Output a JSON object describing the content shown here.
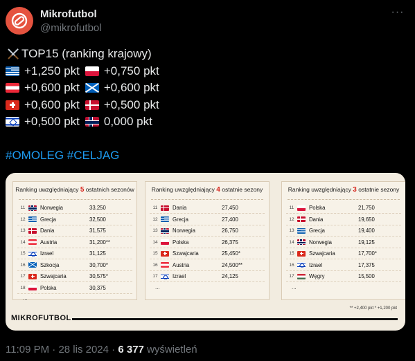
{
  "author": {
    "name": "Mikrofutbol",
    "handle": "@mikrofutbol",
    "more_icon": "ellipsis-icon",
    "more_label": "···"
  },
  "tweet": {
    "headline": "TOP15 (ranking krajowy)",
    "lines": [
      [
        {
          "flag": "greece",
          "value": "+1,250 pkt"
        },
        {
          "flag": "poland",
          "value": "+0,750 pkt"
        }
      ],
      [
        {
          "flag": "austria",
          "value": "+0,600 pkt"
        },
        {
          "flag": "scotland",
          "value": "+0,600 pkt"
        }
      ],
      [
        {
          "flag": "switzerland",
          "value": "+0,600 pkt"
        },
        {
          "flag": "denmark",
          "value": "+0,500 pkt"
        }
      ],
      [
        {
          "flag": "israel",
          "value": "+0,500 pkt"
        },
        {
          "flag": "norway",
          "value": "0,000 pkt"
        }
      ]
    ],
    "hashtags": "#OMOLEG #CELJAG"
  },
  "infographic": {
    "panels": [
      {
        "title_pre": "Ranking uwzględniający",
        "title_num": "5",
        "title_post": "ostatnich sezonów",
        "rows": [
          {
            "pos": "11",
            "flag": "norway",
            "country": "Norwegia",
            "points": "33,250"
          },
          {
            "pos": "12",
            "flag": "greece",
            "country": "Grecja",
            "points": "32,500"
          },
          {
            "pos": "13",
            "flag": "denmark",
            "country": "Dania",
            "points": "31,575"
          },
          {
            "pos": "14",
            "flag": "austria",
            "country": "Austria",
            "points": "31,200**"
          },
          {
            "pos": "15",
            "flag": "israel",
            "country": "Izrael",
            "points": "31,125"
          },
          {
            "pos": "16",
            "flag": "scotland",
            "country": "Szkocja",
            "points": "30,700*"
          },
          {
            "pos": "17",
            "flag": "switzerland",
            "country": "Szwajcaria",
            "points": "30,575*"
          },
          {
            "pos": "18",
            "flag": "poland",
            "country": "Polska",
            "points": "30,375"
          }
        ],
        "ellipsis": "..."
      },
      {
        "title_pre": "Ranking uwzględniający",
        "title_num": "4",
        "title_post": "ostatnie sezony",
        "rows": [
          {
            "pos": "11",
            "flag": "denmark",
            "country": "Dania",
            "points": "27,450"
          },
          {
            "pos": "12",
            "flag": "greece",
            "country": "Grecja",
            "points": "27,400"
          },
          {
            "pos": "13",
            "flag": "norway",
            "country": "Norwegia",
            "points": "26,750"
          },
          {
            "pos": "14",
            "flag": "poland",
            "country": "Polska",
            "points": "26,375"
          },
          {
            "pos": "15",
            "flag": "switzerland",
            "country": "Szwajcaria",
            "points": "25,450*"
          },
          {
            "pos": "16",
            "flag": "austria",
            "country": "Austria",
            "points": "24,500**"
          },
          {
            "pos": "17",
            "flag": "israel",
            "country": "Izrael",
            "points": "24,125"
          }
        ],
        "ellipsis": "..."
      },
      {
        "title_pre": "Ranking uwzględniający",
        "title_num": "3",
        "title_post": "ostatnie sezony",
        "rows": [
          {
            "pos": "11",
            "flag": "poland",
            "country": "Polska",
            "points": "21,750"
          },
          {
            "pos": "12",
            "flag": "denmark",
            "country": "Dania",
            "points": "19,650"
          },
          {
            "pos": "13",
            "flag": "greece",
            "country": "Grecja",
            "points": "19,400"
          },
          {
            "pos": "14",
            "flag": "norway",
            "country": "Norwegia",
            "points": "19,125"
          },
          {
            "pos": "15",
            "flag": "switzerland",
            "country": "Szwajcaria",
            "points": "17,700*"
          },
          {
            "pos": "16",
            "flag": "israel",
            "country": "Izrael",
            "points": "17,375"
          },
          {
            "pos": "17",
            "flag": "hungary",
            "country": "Węgry",
            "points": "15,500"
          }
        ],
        "ellipsis": "..."
      }
    ],
    "footnote": "** +2,400 pkt  * +1,200 pkt",
    "brand": "MIKROFUTBOL"
  },
  "meta": {
    "time": "11:09 PM",
    "date": "28 lis 2024",
    "views_count": "6 377",
    "views_label": "wyświetleń"
  },
  "colors": {
    "background": "#000000",
    "text": "#e7e9ea",
    "muted": "#71767b",
    "link": "#1d9bf0",
    "accent": "#d7261e"
  }
}
